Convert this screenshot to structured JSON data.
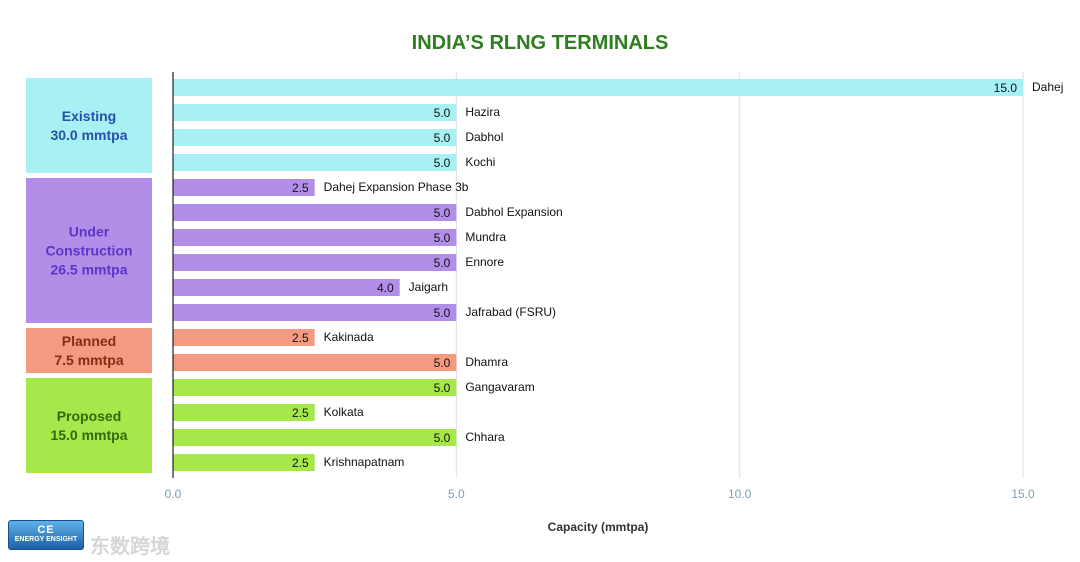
{
  "chart_data": {
    "type": "bar",
    "orientation": "horizontal",
    "title": "INDIA’S RLNG TERMINALS",
    "xlabel": "Capacity (mmtpa)",
    "ylabel": "",
    "xlim": [
      0,
      15
    ],
    "xticks": [
      "0.0",
      "5.0",
      "10.0",
      "15.0"
    ],
    "grid": true,
    "groups": [
      {
        "name": "Existing",
        "total": "30.0 mmtpa",
        "color": "#a7f0f4",
        "label_color": "#2a4fa8",
        "bars": [
          {
            "label": "Dahej",
            "value": 15.0,
            "value_label": "15.0"
          },
          {
            "label": "Hazira",
            "value": 5.0,
            "value_label": "5.0"
          },
          {
            "label": "Dabhol",
            "value": 5.0,
            "value_label": "5.0"
          },
          {
            "label": "Kochi",
            "value": 5.0,
            "value_label": "5.0"
          }
        ]
      },
      {
        "name": "Under Construction",
        "total": "26.5 mmtpa",
        "color": "#b38ee8",
        "label_color": "#5a35c8",
        "bars": [
          {
            "label": "Dahej Expansion Phase 3b",
            "value": 2.5,
            "value_label": "2.5"
          },
          {
            "label": "Dabhol Expansion",
            "value": 5.0,
            "value_label": "5.0"
          },
          {
            "label": "Mundra",
            "value": 5.0,
            "value_label": "5.0"
          },
          {
            "label": "Ennore",
            "value": 5.0,
            "value_label": "5.0"
          },
          {
            "label": "Jaigarh",
            "value": 4.0,
            "value_label": "4.0"
          },
          {
            "label": "Jafrabad (FSRU)",
            "value": 5.0,
            "value_label": "5.0"
          }
        ]
      },
      {
        "name": "Planned",
        "total": "7.5 mmtpa",
        "color": "#f39a80",
        "label_color": "#8a2a12",
        "bars": [
          {
            "label": "Kakinada",
            "value": 2.5,
            "value_label": "2.5"
          },
          {
            "label": "Dhamra",
            "value": 5.0,
            "value_label": "5.0"
          }
        ]
      },
      {
        "name": "Proposed",
        "total": "15.0 mmtpa",
        "color": "#a6e849",
        "label_color": "#2f6a10",
        "bars": [
          {
            "label": "Gangavaram",
            "value": 5.0,
            "value_label": "5.0"
          },
          {
            "label": "Kolkata",
            "value": 2.5,
            "value_label": "2.5"
          },
          {
            "label": "Chhara",
            "value": 5.0,
            "value_label": "5.0"
          },
          {
            "label": "Krishnapatnam",
            "value": 2.5,
            "value_label": "2.5"
          }
        ]
      }
    ]
  },
  "logo": {
    "mark": "CE",
    "text": "ENERGY ENSIGHT"
  },
  "watermark": "东数跨境"
}
